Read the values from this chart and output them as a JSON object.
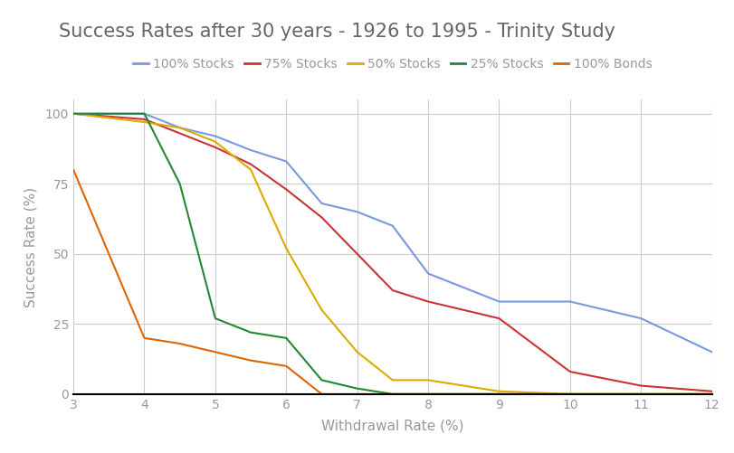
{
  "title": "Success Rates after 30 years - 1926 to 1995 - Trinity Study",
  "xlabel": "Withdrawal Rate (%)",
  "ylabel": "Success Rate (%)",
  "background_color": "#ffffff",
  "grid_color": "#cccccc",
  "series": [
    {
      "label": "100% Stocks",
      "color": "#7799dd",
      "x": [
        3,
        4,
        4.5,
        5,
        5.5,
        6,
        6.5,
        7,
        7.5,
        8,
        9,
        10,
        11,
        12
      ],
      "y": [
        100,
        100,
        95,
        92,
        87,
        83,
        68,
        65,
        60,
        43,
        33,
        33,
        27,
        15
      ]
    },
    {
      "label": "75% Stocks",
      "color": "#cc3333",
      "x": [
        3,
        4,
        4.5,
        5,
        5.5,
        6,
        6.5,
        7,
        7.5,
        8,
        9,
        10,
        11,
        12
      ],
      "y": [
        100,
        98,
        93,
        88,
        82,
        73,
        63,
        50,
        37,
        33,
        27,
        8,
        3,
        1
      ]
    },
    {
      "label": "50% Stocks",
      "color": "#ddaa00",
      "x": [
        3,
        4,
        4.5,
        5,
        5.5,
        6,
        6.5,
        7,
        7.5,
        8,
        9,
        10,
        11,
        12
      ],
      "y": [
        100,
        97,
        95,
        90,
        80,
        52,
        30,
        15,
        5,
        5,
        1,
        0,
        0,
        0
      ]
    },
    {
      "label": "25% Stocks",
      "color": "#228833",
      "x": [
        3,
        4,
        4.5,
        5,
        5.5,
        6,
        6.5,
        7,
        7.5,
        8,
        9,
        10,
        11,
        12
      ],
      "y": [
        100,
        100,
        75,
        27,
        22,
        20,
        5,
        2,
        0,
        0,
        0,
        0,
        0,
        0
      ]
    },
    {
      "label": "100% Bonds",
      "color": "#dd6600",
      "x": [
        3,
        4,
        4.5,
        5,
        5.5,
        6,
        6.5,
        7,
        7.5,
        8,
        9,
        10,
        11,
        12
      ],
      "y": [
        80,
        20,
        18,
        15,
        12,
        10,
        0,
        0,
        0,
        0,
        0,
        0,
        0,
        0
      ]
    }
  ],
  "xlim": [
    3,
    12
  ],
  "ylim": [
    0,
    105
  ],
  "xticks": [
    3,
    4,
    5,
    6,
    7,
    8,
    9,
    10,
    11,
    12
  ],
  "yticks": [
    0,
    25,
    50,
    75,
    100
  ],
  "title_fontsize": 15,
  "label_fontsize": 11,
  "tick_fontsize": 10,
  "legend_fontsize": 10,
  "line_width": 1.5,
  "title_color": "#666666",
  "tick_color": "#999999"
}
